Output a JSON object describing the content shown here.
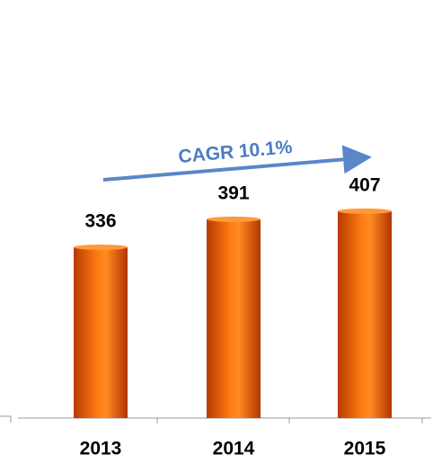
{
  "chart_data": {
    "type": "bar",
    "categories": [
      "2013",
      "2014",
      "2015"
    ],
    "values": [
      336,
      391,
      407
    ],
    "color": "#f26a0c",
    "annotation": "CAGR 10.1%"
  }
}
